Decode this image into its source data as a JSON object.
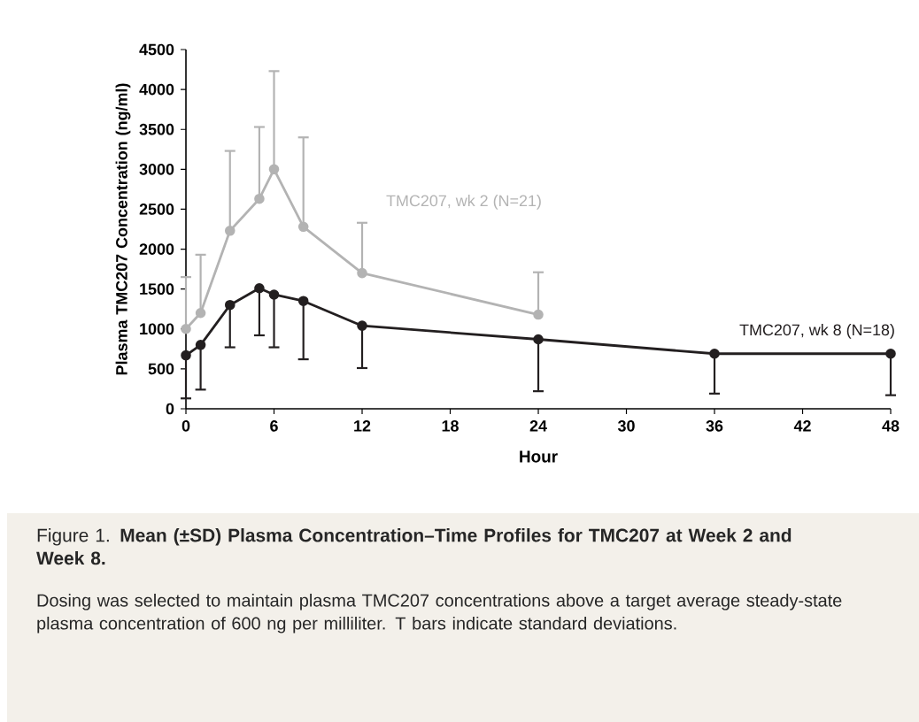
{
  "chart_data": {
    "type": "line",
    "title": "Figure 1. **Mean (±SD) Plasma Concentration–Time Profiles for TMC207 at Week 2 and Week 8.**",
    "xlabel": "Hour",
    "ylabel": "Plasma TMC207 Concentration (ng/ml)",
    "annotations": [
      "Dosing was selected to maintain plasma TMC207 concentrations above a target average steady-state plasma concentration of 600 ng per milliliter. T bars indicate standard deviations."
    ],
    "xlim": [
      0,
      48
    ],
    "xticks": [
      0,
      6,
      12,
      18,
      24,
      30,
      36,
      42,
      48
    ],
    "ylim": [
      0,
      4500
    ],
    "yticks": [
      0,
      500,
      1000,
      1500,
      2000,
      2500,
      3000,
      3500,
      4000,
      4500
    ],
    "grid": false,
    "legend": false,
    "marker": "circle",
    "line_style": "solid",
    "series": [
      {
        "name": "TMC207, wk 2 (N=21)",
        "color": "#b3b3b3",
        "x": [
          0,
          1,
          3,
          5,
          6,
          8,
          12,
          24
        ],
        "values": [
          1000,
          1200,
          2230,
          2630,
          3000,
          2280,
          1700,
          1180
        ],
        "errors": [
          [
            1000,
            1650
          ],
          [
            1200,
            1930
          ],
          [
            2230,
            3230
          ],
          [
            2630,
            3530
          ],
          [
            3000,
            4230
          ],
          [
            2280,
            3400
          ],
          [
            1700,
            2330
          ],
          [
            1180,
            1710
          ]
        ]
      },
      {
        "name": "TMC207, wk 8 (N=18)",
        "color": "#231f20",
        "x": [
          0,
          1,
          3,
          5,
          6,
          8,
          12,
          24,
          36,
          48
        ],
        "values": [
          670,
          800,
          1300,
          1510,
          1430,
          1350,
          1040,
          870,
          690,
          690
        ],
        "errors": [
          [
            130,
            670
          ],
          [
            240,
            800
          ],
          [
            770,
            1300
          ],
          [
            920,
            1510
          ],
          [
            770,
            1430
          ],
          [
            620,
            1350
          ],
          [
            510,
            1040
          ],
          [
            220,
            870
          ],
          [
            190,
            690
          ],
          [
            170,
            690
          ]
        ]
      }
    ]
  }
}
